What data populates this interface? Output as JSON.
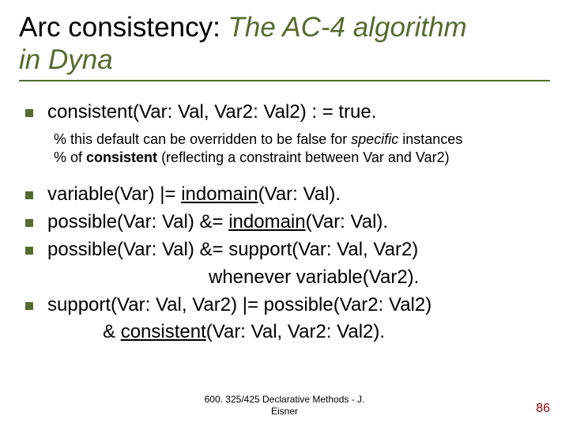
{
  "title": {
    "plain": "Arc consistency: ",
    "italic1": "The AC-4 algorithm",
    "italic2": "in Dyna"
  },
  "bullets": {
    "b1": "consistent(Var: Val, Var2: Val2) : = true.",
    "c1a_prefix": "% this default can be overridden to be false for ",
    "c1a_em": "specific",
    "c1a_suffix": " instances",
    "c1b_prefix": "% of ",
    "c1b_bold": "consistent",
    "c1b_suffix": " (reflecting a constraint between Var and Var2)",
    "b2_pre": "variable(Var) |= ",
    "b2_u": "indomain",
    "b2_post": "(Var: Val).",
    "b3_pre": "possible(Var: Val) &= ",
    "b3_u": "indomain",
    "b3_post": "(Var: Val).",
    "b4": "possible(Var: Val) &= support(Var: Val, Var2)",
    "b4c": "whenever variable(Var2).",
    "b5": "support(Var: Val, Var2) |= possible(Var2: Val2)",
    "b5c_pre": "& ",
    "b5c_u": "consistent",
    "b5c_post": "(Var: Val, Var2: Val2)."
  },
  "footer": {
    "l1": "600. 325/425 Declarative Methods - J.",
    "l2": "Eisner"
  },
  "pagenum": "86",
  "colors": {
    "accent": "#556b2f",
    "pagenum": "#8b0000"
  }
}
